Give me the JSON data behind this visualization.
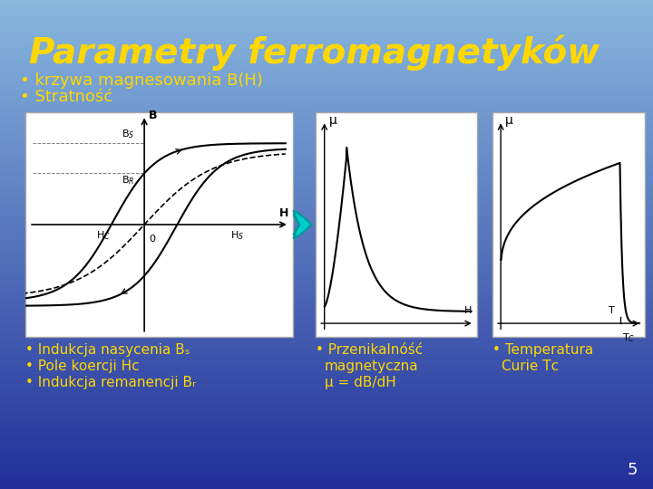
{
  "title": "Parametry ferromagnetyków",
  "title_color": "#FFD700",
  "title_fontsize": 28,
  "bullet1": "krzywa magnesowania B(H)",
  "bullet2": "Stratność",
  "bullet_color": "#FFD700",
  "bullet_fontsize": 13,
  "text_bottom_color": "#FFD700",
  "slide_number": "5",
  "arrow_color": "#00CCCC",
  "panel_edge_color": "#AAAAAA",
  "panel_face_color": "#FFFFFF"
}
